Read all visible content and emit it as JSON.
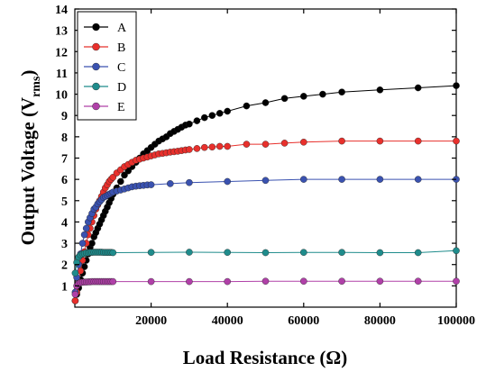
{
  "chart_data": {
    "type": "line",
    "xlabel": "Load Resistance (Ω)",
    "ylabel_main": "Output Voltage (V",
    "ylabel_sub": "rms",
    "ylabel_close": ")",
    "xlim": [
      0,
      100000
    ],
    "ylim": [
      0,
      14
    ],
    "x_ticks": [
      20000,
      40000,
      60000,
      80000,
      100000
    ],
    "x_tick_labels": [
      "20000",
      "40000",
      "60000",
      "80000",
      "100000"
    ],
    "y_ticks": [
      1,
      2,
      3,
      4,
      5,
      6,
      7,
      8,
      9,
      10,
      11,
      12,
      13,
      14
    ],
    "y_tick_labels": [
      "1",
      "2",
      "3",
      "4",
      "5",
      "6",
      "7",
      "8",
      "9",
      "10",
      "11",
      "12",
      "13",
      "14"
    ],
    "grid": false,
    "legend_position": "top-left",
    "series": [
      {
        "name": "A",
        "color": "#000000",
        "points": [
          [
            100,
            0.3
          ],
          [
            500,
            0.6
          ],
          [
            1000,
            0.9
          ],
          [
            1500,
            1.3
          ],
          [
            2000,
            1.6
          ],
          [
            2500,
            1.9
          ],
          [
            3000,
            2.2
          ],
          [
            3500,
            2.5
          ],
          [
            4000,
            2.8
          ],
          [
            4500,
            3.0
          ],
          [
            5000,
            3.3
          ],
          [
            5500,
            3.5
          ],
          [
            6000,
            3.7
          ],
          [
            6500,
            3.9
          ],
          [
            7000,
            4.1
          ],
          [
            7500,
            4.3
          ],
          [
            8000,
            4.5
          ],
          [
            8500,
            4.7
          ],
          [
            9000,
            4.9
          ],
          [
            9500,
            5.1
          ],
          [
            10000,
            5.3
          ],
          [
            11000,
            5.6
          ],
          [
            12000,
            5.9
          ],
          [
            13000,
            6.2
          ],
          [
            14000,
            6.4
          ],
          [
            15000,
            6.6
          ],
          [
            16000,
            6.8
          ],
          [
            17000,
            7.0
          ],
          [
            18000,
            7.2
          ],
          [
            19000,
            7.35
          ],
          [
            20000,
            7.5
          ],
          [
            21000,
            7.65
          ],
          [
            22000,
            7.8
          ],
          [
            23000,
            7.9
          ],
          [
            24000,
            8.0
          ],
          [
            25000,
            8.15
          ],
          [
            26000,
            8.25
          ],
          [
            27000,
            8.35
          ],
          [
            28000,
            8.45
          ],
          [
            29000,
            8.55
          ],
          [
            30000,
            8.6
          ],
          [
            32000,
            8.75
          ],
          [
            34000,
            8.9
          ],
          [
            36000,
            9.0
          ],
          [
            38000,
            9.1
          ],
          [
            40000,
            9.2
          ],
          [
            45000,
            9.45
          ],
          [
            50000,
            9.6
          ],
          [
            55000,
            9.8
          ],
          [
            60000,
            9.9
          ],
          [
            65000,
            10.0
          ],
          [
            70000,
            10.1
          ],
          [
            80000,
            10.2
          ],
          [
            90000,
            10.3
          ],
          [
            100000,
            10.4
          ]
        ]
      },
      {
        "name": "B",
        "color": "#e8302c",
        "points": [
          [
            100,
            0.3
          ],
          [
            500,
            0.7
          ],
          [
            1000,
            1.2
          ],
          [
            1500,
            1.7
          ],
          [
            2000,
            2.2
          ],
          [
            2500,
            2.6
          ],
          [
            3000,
            3.0
          ],
          [
            3500,
            3.4
          ],
          [
            4000,
            3.7
          ],
          [
            4500,
            4.0
          ],
          [
            5000,
            4.3
          ],
          [
            5500,
            4.6
          ],
          [
            6000,
            4.8
          ],
          [
            6500,
            5.0
          ],
          [
            7000,
            5.2
          ],
          [
            7500,
            5.4
          ],
          [
            8000,
            5.6
          ],
          [
            8500,
            5.75
          ],
          [
            9000,
            5.9
          ],
          [
            9500,
            6.0
          ],
          [
            10000,
            6.1
          ],
          [
            11000,
            6.3
          ],
          [
            12000,
            6.45
          ],
          [
            13000,
            6.6
          ],
          [
            14000,
            6.7
          ],
          [
            15000,
            6.8
          ],
          [
            16000,
            6.9
          ],
          [
            17000,
            6.95
          ],
          [
            18000,
            7.0
          ],
          [
            19000,
            7.05
          ],
          [
            20000,
            7.1
          ],
          [
            21000,
            7.15
          ],
          [
            22000,
            7.2
          ],
          [
            23000,
            7.22
          ],
          [
            24000,
            7.25
          ],
          [
            25000,
            7.28
          ],
          [
            26000,
            7.3
          ],
          [
            27000,
            7.32
          ],
          [
            28000,
            7.35
          ],
          [
            29000,
            7.38
          ],
          [
            30000,
            7.4
          ],
          [
            32000,
            7.45
          ],
          [
            34000,
            7.5
          ],
          [
            36000,
            7.52
          ],
          [
            38000,
            7.55
          ],
          [
            40000,
            7.55
          ],
          [
            45000,
            7.65
          ],
          [
            50000,
            7.65
          ],
          [
            55000,
            7.7
          ],
          [
            60000,
            7.75
          ],
          [
            70000,
            7.8
          ],
          [
            80000,
            7.8
          ],
          [
            90000,
            7.8
          ],
          [
            100000,
            7.8
          ]
        ]
      },
      {
        "name": "C",
        "color": "#3a52b0",
        "points": [
          [
            100,
            0.7
          ],
          [
            500,
            1.4
          ],
          [
            1000,
            2.0
          ],
          [
            1500,
            2.5
          ],
          [
            2000,
            3.0
          ],
          [
            2500,
            3.4
          ],
          [
            3000,
            3.7
          ],
          [
            3500,
            4.0
          ],
          [
            4000,
            4.2
          ],
          [
            4500,
            4.4
          ],
          [
            5000,
            4.6
          ],
          [
            5500,
            4.7
          ],
          [
            6000,
            4.85
          ],
          [
            6500,
            4.95
          ],
          [
            7000,
            5.05
          ],
          [
            7500,
            5.15
          ],
          [
            8000,
            5.2
          ],
          [
            8500,
            5.25
          ],
          [
            9000,
            5.3
          ],
          [
            9500,
            5.35
          ],
          [
            10000,
            5.4
          ],
          [
            11000,
            5.45
          ],
          [
            12000,
            5.5
          ],
          [
            13000,
            5.55
          ],
          [
            14000,
            5.6
          ],
          [
            15000,
            5.65
          ],
          [
            16000,
            5.68
          ],
          [
            17000,
            5.7
          ],
          [
            18000,
            5.72
          ],
          [
            19000,
            5.74
          ],
          [
            20000,
            5.75
          ],
          [
            25000,
            5.8
          ],
          [
            30000,
            5.85
          ],
          [
            40000,
            5.9
          ],
          [
            50000,
            5.95
          ],
          [
            60000,
            6.0
          ],
          [
            70000,
            6.0
          ],
          [
            80000,
            6.0
          ],
          [
            90000,
            6.0
          ],
          [
            100000,
            6.0
          ]
        ]
      },
      {
        "name": "D",
        "color": "#1f8c8c",
        "points": [
          [
            100,
            1.6
          ],
          [
            500,
            2.1
          ],
          [
            1000,
            2.35
          ],
          [
            1500,
            2.45
          ],
          [
            2000,
            2.5
          ],
          [
            2500,
            2.52
          ],
          [
            3000,
            2.55
          ],
          [
            3500,
            2.55
          ],
          [
            4000,
            2.57
          ],
          [
            4500,
            2.57
          ],
          [
            5000,
            2.58
          ],
          [
            5500,
            2.58
          ],
          [
            6000,
            2.58
          ],
          [
            6500,
            2.58
          ],
          [
            7000,
            2.58
          ],
          [
            7500,
            2.57
          ],
          [
            8000,
            2.57
          ],
          [
            8500,
            2.57
          ],
          [
            9000,
            2.57
          ],
          [
            9500,
            2.57
          ],
          [
            10000,
            2.56
          ],
          [
            20000,
            2.57
          ],
          [
            30000,
            2.58
          ],
          [
            40000,
            2.57
          ],
          [
            50000,
            2.56
          ],
          [
            60000,
            2.57
          ],
          [
            70000,
            2.57
          ],
          [
            80000,
            2.56
          ],
          [
            90000,
            2.56
          ],
          [
            100000,
            2.65
          ]
        ]
      },
      {
        "name": "E",
        "color": "#b040a8",
        "points": [
          [
            100,
            0.6
          ],
          [
            500,
            1.0
          ],
          [
            1000,
            1.1
          ],
          [
            1500,
            1.15
          ],
          [
            2000,
            1.17
          ],
          [
            2500,
            1.18
          ],
          [
            3000,
            1.18
          ],
          [
            3500,
            1.19
          ],
          [
            4000,
            1.19
          ],
          [
            4500,
            1.2
          ],
          [
            5000,
            1.2
          ],
          [
            5500,
            1.2
          ],
          [
            6000,
            1.2
          ],
          [
            6500,
            1.2
          ],
          [
            7000,
            1.2
          ],
          [
            7500,
            1.2
          ],
          [
            8000,
            1.2
          ],
          [
            8500,
            1.2
          ],
          [
            9000,
            1.2
          ],
          [
            9500,
            1.2
          ],
          [
            10000,
            1.2
          ],
          [
            20000,
            1.2
          ],
          [
            30000,
            1.2
          ],
          [
            40000,
            1.2
          ],
          [
            50000,
            1.22
          ],
          [
            60000,
            1.22
          ],
          [
            70000,
            1.22
          ],
          [
            80000,
            1.22
          ],
          [
            90000,
            1.22
          ],
          [
            100000,
            1.22
          ]
        ]
      }
    ]
  }
}
